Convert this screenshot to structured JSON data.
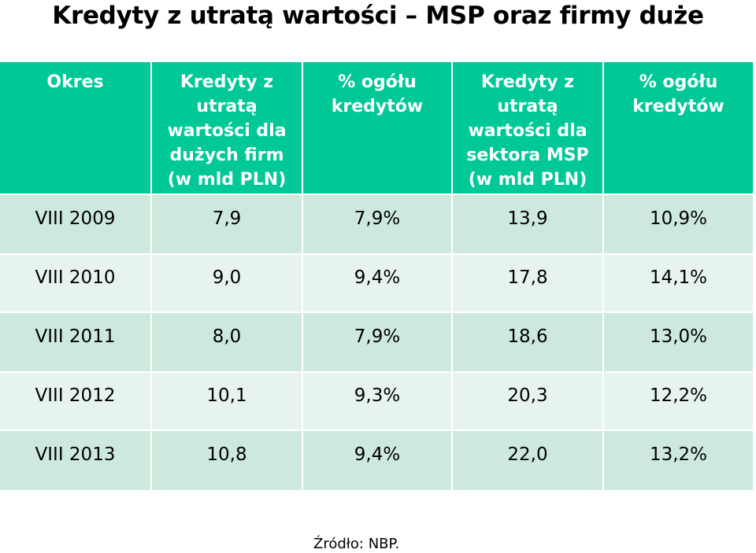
{
  "title": "Kredyty z utratą wartości – MSP oraz firmy duże",
  "table": {
    "headers": [
      "Okres",
      "Kredyty z\nutratą\nwartości dla\ndużych firm\n(w mld PLN)",
      "% ogółu\nkredytów",
      "Kredyty z\nutratą\nwartości dla\nsektora MSP\n(w mld PLN)",
      "% ogółu\nkredytów"
    ],
    "rows": [
      [
        "VIII 2009",
        "7,9",
        "7,9%",
        "13,9",
        "10,9%"
      ],
      [
        "VIII 2010",
        "9,0",
        "9,4%",
        "17,8",
        "14,1%"
      ],
      [
        "VIII 2011",
        "8,0",
        "7,9%",
        "18,6",
        "13,0%"
      ],
      [
        "VIII 2012",
        "10,1",
        "9,3%",
        "20,3",
        "12,2%"
      ],
      [
        "VIII 2013",
        "10,8",
        "9,4%",
        "22,0",
        "13,2%"
      ]
    ]
  },
  "source": "Źródło: NBP.",
  "colors": {
    "header_bg": "#00c896",
    "header_text": "#ffffff",
    "row_odd_bg": "#cde9dd",
    "row_even_bg": "#e7f4ee"
  }
}
